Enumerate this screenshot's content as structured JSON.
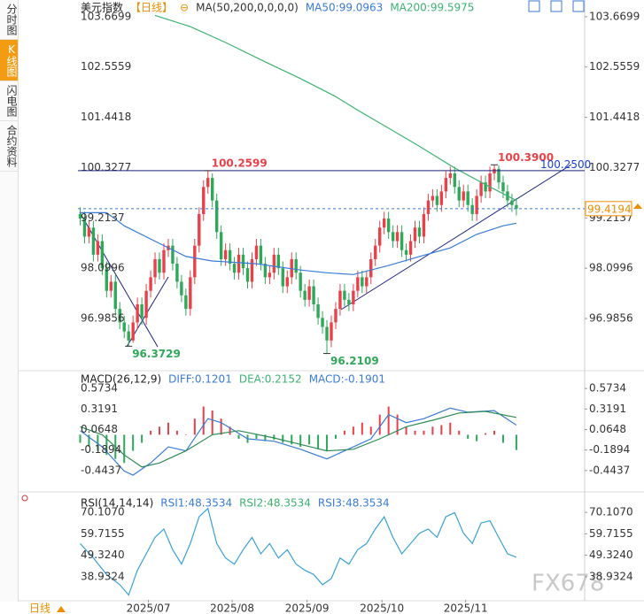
{
  "sidebar": [
    "分时图",
    "K线图",
    "闪电图",
    "合约资料"
  ],
  "period": "日线",
  "watermark": "FX678",
  "chart_data": [
    {
      "type": "candlestick",
      "header": [
        {
          "text": "美元指数",
          "color": "#222222"
        },
        {
          "text": "【日线】",
          "color": "#f08c00"
        },
        {
          "text": "⊖",
          "color": "#f08c00"
        },
        {
          "text": "MA(50,200,0,0,0,0)",
          "color": "#333333"
        },
        {
          "text": "MA50:99.0963",
          "color": "#3a7bd5"
        },
        {
          "text": "MA200:99.5975",
          "color": "#3cb371"
        }
      ],
      "up_color": "#e8414a",
      "down_color": "#2fa85a",
      "xlim": [
        0,
        115
      ],
      "ylim": [
        95.85,
        104.04
      ],
      "yticks": [
        103.6699,
        102.5559,
        101.4418,
        100.3277,
        99.2137,
        98.0996,
        96.9856
      ],
      "open": [
        99.3,
        99.2,
        98.8,
        99.0,
        98.4,
        98.7,
        98.1,
        97.6,
        97.8,
        97.2,
        96.9,
        96.7,
        96.5,
        96.9,
        97.3,
        97.0,
        97.6,
        97.9,
        98.3,
        98.0,
        98.5,
        98.6,
        98.2,
        97.8,
        97.5,
        97.2,
        97.9,
        98.6,
        99.3,
        99.9,
        100.1,
        99.6,
        98.9,
        98.3,
        98.5,
        98.2,
        98.0,
        98.4,
        98.1,
        97.8,
        98.3,
        98.6,
        98.2,
        97.9,
        98.0,
        98.4,
        98.1,
        97.7,
        97.9,
        98.3,
        98.0,
        97.6,
        97.4,
        97.7,
        97.3,
        97.0,
        96.8,
        96.5,
        96.9,
        97.2,
        97.6,
        97.4,
        97.3,
        97.6,
        97.9,
        97.7,
        97.9,
        98.3,
        98.6,
        99.0,
        99.2,
        98.9,
        98.7,
        98.9,
        98.5,
        98.4,
        98.7,
        99.0,
        98.8,
        99.3,
        99.6,
        99.7,
        99.5,
        99.8,
        100.1,
        100.2,
        99.9,
        99.6,
        99.8,
        99.5,
        99.3,
        99.7,
        100.0,
        99.8,
        100.2,
        100.3,
        100.0,
        99.8,
        99.6,
        99.5
      ],
      "high": [
        99.45,
        99.35,
        99.15,
        99.15,
        98.85,
        98.85,
        98.25,
        97.95,
        97.95,
        97.35,
        97.05,
        96.85,
        97.05,
        97.45,
        97.45,
        97.75,
        98.05,
        98.45,
        98.45,
        98.65,
        98.75,
        98.75,
        98.35,
        97.95,
        97.65,
        98.05,
        98.75,
        99.45,
        100.05,
        100.2599,
        100.2,
        99.75,
        99.05,
        98.65,
        98.65,
        98.35,
        98.55,
        98.55,
        98.25,
        98.45,
        98.75,
        98.75,
        98.35,
        98.15,
        98.55,
        98.55,
        98.25,
        98.05,
        98.45,
        98.45,
        98.15,
        97.75,
        97.85,
        97.85,
        97.45,
        97.15,
        96.95,
        97.05,
        97.35,
        97.75,
        97.75,
        97.55,
        97.75,
        98.05,
        98.05,
        98.05,
        98.45,
        98.75,
        99.15,
        99.35,
        99.35,
        99.05,
        99.05,
        99.05,
        98.65,
        98.85,
        99.15,
        99.15,
        99.45,
        99.75,
        99.85,
        99.85,
        99.95,
        100.25,
        100.35,
        100.35,
        100.05,
        99.95,
        99.95,
        99.65,
        99.85,
        100.15,
        100.15,
        100.35,
        100.39,
        100.38,
        100.15,
        99.95,
        99.75,
        99.65
      ],
      "low": [
        99.05,
        98.65,
        98.65,
        98.25,
        98.25,
        97.95,
        97.45,
        97.45,
        97.05,
        96.75,
        96.55,
        96.3729,
        96.45,
        96.75,
        96.85,
        96.85,
        97.45,
        97.75,
        97.85,
        97.85,
        98.35,
        98.05,
        97.65,
        97.35,
        97.05,
        97.05,
        97.75,
        98.45,
        99.15,
        99.75,
        99.45,
        98.75,
        98.15,
        98.15,
        98.05,
        97.85,
        97.85,
        97.95,
        97.65,
        97.65,
        98.15,
        98.05,
        97.75,
        97.75,
        97.85,
        97.95,
        97.55,
        97.55,
        97.75,
        97.85,
        97.45,
        97.25,
        97.25,
        97.15,
        96.85,
        96.65,
        96.2109,
        96.35,
        96.75,
        97.05,
        97.25,
        97.15,
        97.15,
        97.45,
        97.55,
        97.55,
        97.75,
        98.15,
        98.45,
        98.85,
        98.75,
        98.55,
        98.55,
        98.35,
        98.25,
        98.25,
        98.55,
        98.65,
        98.65,
        99.15,
        99.45,
        99.35,
        99.35,
        99.65,
        99.95,
        99.75,
        99.45,
        99.45,
        99.35,
        99.15,
        99.15,
        99.55,
        99.65,
        99.65,
        100.05,
        99.85,
        99.65,
        99.45,
        99.35,
        99.27
      ],
      "close": [
        99.2,
        98.8,
        99.0,
        98.4,
        98.7,
        98.1,
        97.6,
        97.8,
        97.2,
        96.9,
        96.7,
        96.5,
        96.9,
        97.3,
        97.0,
        97.6,
        97.9,
        98.3,
        98.0,
        98.5,
        98.6,
        98.2,
        97.8,
        97.5,
        97.2,
        97.9,
        98.6,
        99.3,
        99.9,
        100.1,
        99.6,
        98.9,
        98.3,
        98.5,
        98.2,
        98.0,
        98.4,
        98.1,
        97.8,
        98.3,
        98.6,
        98.2,
        97.9,
        98.0,
        98.4,
        98.1,
        97.7,
        97.9,
        98.3,
        98.0,
        97.6,
        97.4,
        97.7,
        97.3,
        97.0,
        96.8,
        96.5,
        96.9,
        97.2,
        97.6,
        97.4,
        97.3,
        97.6,
        97.9,
        97.7,
        97.9,
        98.3,
        98.6,
        99.0,
        99.2,
        98.9,
        98.7,
        98.9,
        98.5,
        98.4,
        98.7,
        99.0,
        98.8,
        99.3,
        99.6,
        99.7,
        99.5,
        99.8,
        100.1,
        100.2,
        99.9,
        99.6,
        99.8,
        99.5,
        99.3,
        99.7,
        100.0,
        99.8,
        100.2,
        100.3,
        100.0,
        99.8,
        99.6,
        99.5,
        99.42
      ],
      "lines": [
        {
          "color": "#3a7bd5",
          "x": [
            0,
            6,
            10,
            18,
            24,
            30,
            40,
            50,
            56,
            62,
            70,
            77,
            84,
            90,
            96,
            99
          ],
          "values": [
            99.33,
            99.33,
            99.04,
            98.65,
            98.36,
            98.26,
            98.2,
            98.06,
            98.0,
            97.96,
            98.16,
            98.36,
            98.55,
            98.85,
            99.04,
            99.0963
          ]
        },
        {
          "color": "#3cb371",
          "x": [
            17,
            25,
            33,
            42,
            50,
            58,
            63,
            70,
            77,
            85,
            92,
            99
          ],
          "values": [
            103.7,
            103.45,
            103.1,
            102.67,
            102.3,
            101.9,
            101.6,
            101.2,
            100.8,
            100.32,
            99.95,
            99.5975
          ]
        }
      ],
      "annotations": [
        {
          "value": 100.2599,
          "label": "100.2599"
        },
        {
          "value": 96.3729,
          "label": "96.3729"
        },
        {
          "value": 96.2109,
          "label": "96.2109"
        },
        {
          "value": 100.39,
          "label": "100.3900"
        }
      ],
      "last_price": {
        "value": 99.4194,
        "label": "99.4194"
      },
      "trend_label": {
        "value": 100.25,
        "label": "100.2500"
      }
    },
    {
      "type": "macd",
      "header": [
        {
          "text": "MACD(26,12,9)",
          "color": "#222222"
        },
        {
          "text": "DIFF:0.1201",
          "color": "#3a7bd5"
        },
        {
          "text": "DEA:0.2152",
          "color": "#3cb371"
        },
        {
          "text": "MACD:-0.1901",
          "color": "#3a7bd5"
        }
      ],
      "xlim": [
        0,
        115
      ],
      "ylim": [
        -0.698,
        0.7835
      ],
      "yticks": [
        0.5734,
        0.3191,
        0.0648,
        -0.1894,
        -0.4437
      ],
      "histogram": {
        "up_color": "#e8414a",
        "down_color": "#2fa85a",
        "x": [
          0,
          2,
          4,
          6,
          8,
          10,
          12,
          14,
          16,
          18,
          20,
          22,
          24,
          26,
          28,
          30,
          32,
          34,
          36,
          38,
          40,
          42,
          44,
          46,
          48,
          50,
          52,
          54,
          56,
          58,
          60,
          62,
          64,
          66,
          68,
          70,
          72,
          74,
          76,
          78,
          80,
          82,
          84,
          86,
          88,
          90,
          92,
          94,
          96,
          99
        ],
        "values": [
          -0.1,
          -0.15,
          -0.2,
          -0.25,
          -0.3,
          -0.35,
          -0.2,
          -0.1,
          0.05,
          0.1,
          0.15,
          0.05,
          0.0,
          0.2,
          0.35,
          0.3,
          0.2,
          0.1,
          -0.05,
          -0.1,
          -0.05,
          -0.08,
          -0.06,
          -0.1,
          -0.12,
          -0.15,
          -0.12,
          -0.18,
          -0.2,
          -0.05,
          0.05,
          0.1,
          0.15,
          0.1,
          0.25,
          0.35,
          0.25,
          0.1,
          0.05,
          0.05,
          0.1,
          0.12,
          0.15,
          0.05,
          -0.05,
          -0.08,
          0.02,
          0.05,
          -0.1,
          -0.1901
        ]
      },
      "lines": [
        {
          "color": "#3a7bd5",
          "x": [
            0,
            5,
            10,
            12,
            16,
            20,
            24,
            29,
            32,
            38,
            44,
            50,
            56,
            60,
            66,
            70,
            74,
            78,
            84,
            88,
            94,
            99
          ],
          "values": [
            0.05,
            -0.15,
            -0.45,
            -0.5,
            -0.35,
            -0.15,
            -0.2,
            0.2,
            0.15,
            -0.05,
            -0.08,
            -0.18,
            -0.3,
            -0.2,
            -0.05,
            0.25,
            0.15,
            0.2,
            0.33,
            0.28,
            0.3,
            0.1201
          ]
        },
        {
          "color": "#2e8b57",
          "x": [
            0,
            5,
            10,
            14,
            18,
            24,
            30,
            36,
            44,
            50,
            56,
            62,
            68,
            74,
            80,
            86,
            92,
            99
          ],
          "values": [
            0.1,
            0.0,
            -0.25,
            -0.4,
            -0.35,
            -0.2,
            0.0,
            0.05,
            -0.04,
            -0.12,
            -0.2,
            -0.18,
            -0.05,
            0.1,
            0.18,
            0.27,
            0.29,
            0.2152
          ]
        }
      ]
    },
    {
      "type": "line",
      "header": [
        {
          "text": "RSI(14,14,14)",
          "color": "#222222"
        },
        {
          "text": "RSI1:48.3534",
          "color": "#3a7bd5"
        },
        {
          "text": "RSI2:48.3534",
          "color": "#3cb371"
        },
        {
          "text": "RSI3:48.3534",
          "color": "#3a7bd5"
        }
      ],
      "xlim": [
        0,
        115
      ],
      "ylim": [
        27.68,
        78.33
      ],
      "yticks": [
        {
          "value": 70.107,
          "label": "70.1070"
        },
        59.7155,
        {
          "value": 49.324,
          "label": "49.3240"
        },
        38.9324
      ],
      "xticks": [
        {
          "value": 16,
          "label": "2025/07"
        },
        {
          "value": 35,
          "label": "2025/08"
        },
        {
          "value": 52,
          "label": "2025/09"
        },
        {
          "value": 69,
          "label": "2025/10"
        },
        {
          "value": 88,
          "label": "2025/11"
        }
      ],
      "lines": [
        {
          "color": "#3aa0d8",
          "x": [
            0,
            3,
            6,
            9,
            11,
            13,
            15,
            17,
            19,
            21,
            23,
            25,
            27,
            29,
            31,
            33,
            35,
            37,
            39,
            41,
            43,
            45,
            47,
            49,
            51,
            53,
            55,
            57,
            59,
            61,
            63,
            65,
            67,
            69,
            71,
            73,
            75,
            77,
            79,
            81,
            83,
            85,
            87,
            89,
            91,
            93,
            95,
            97,
            99
          ],
          "values": [
            55,
            48,
            40,
            35,
            30,
            42,
            50,
            58,
            62,
            52,
            45,
            55,
            68,
            72,
            55,
            48,
            45,
            52,
            58,
            50,
            55,
            48,
            52,
            45,
            42,
            40,
            35,
            38,
            48,
            45,
            52,
            55,
            62,
            68,
            58,
            50,
            55,
            60,
            62,
            58,
            68,
            70,
            60,
            55,
            65,
            66,
            58,
            50,
            48.3534
          ]
        }
      ]
    }
  ]
}
